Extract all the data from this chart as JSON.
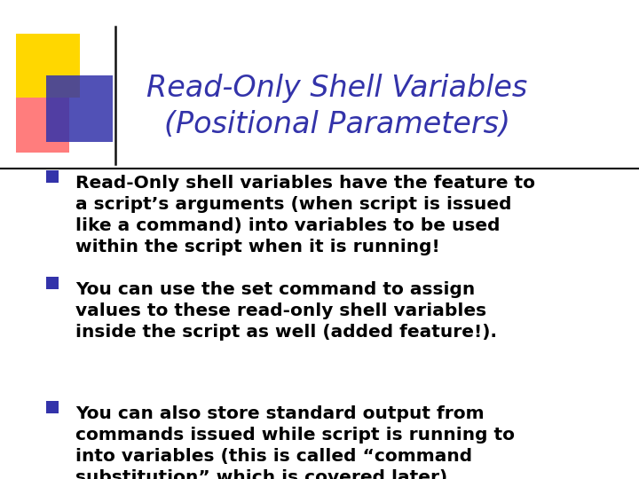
{
  "title_line1": "Read-Only Shell Variables",
  "title_line2": "(Positional Parameters)",
  "title_color": "#3333AA",
  "background_color": "#FFFFFF",
  "bullet_color": "#3333AA",
  "text_color": "#000000",
  "bullet_points": [
    "Read-Only shell variables have the feature to\na script’s arguments (when script is issued\nlike a command) into variables to be used\nwithin the script when it is running!",
    "You can use the set command to assign\nvalues to these read-only shell variables\ninside the script as well (added feature!).",
    "You can also store standard output from\ncommands issued while script is running to\ninto variables (this is called “command\nsubstitution” which is covered later)."
  ],
  "separator_color": "#000000",
  "logo_yellow": "#FFD700",
  "logo_red": "#FF6666",
  "logo_blue": "#3333AA",
  "title_fontsize": 24,
  "body_fontsize": 14.5,
  "bullet_square_size": 0.013
}
